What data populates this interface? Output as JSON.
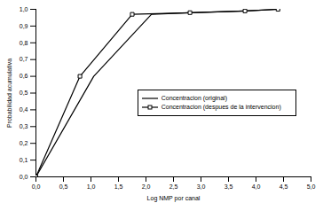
{
  "chart_data": {
    "type": "line",
    "x_label": "Log NMP por canal",
    "y_label": "Probabilidad acumulativa",
    "series": [
      {
        "name": "Concentracion (original)",
        "color": "#000000",
        "marker": "none",
        "line_style": "solid",
        "x": [
          0.0,
          1.05,
          2.1,
          2.8,
          3.8,
          4.4
        ],
        "values": [
          0.0,
          0.6,
          0.97,
          0.98,
          0.99,
          1.0
        ]
      },
      {
        "name": "Concentracion (despues de la intervencion)",
        "color": "#000000",
        "marker": "square",
        "line_style": "solid",
        "x": [
          0.0,
          0.8,
          1.75,
          2.8,
          3.8,
          4.4
        ],
        "values": [
          0.0,
          0.6,
          0.97,
          0.98,
          0.99,
          1.0
        ]
      }
    ],
    "xlim": [
      0.0,
      5.0
    ],
    "xticks": [
      {
        "value": 0.0,
        "label": "0,0"
      },
      {
        "value": 0.5,
        "label": "0,5"
      },
      {
        "value": 1.0,
        "label": "1,0"
      },
      {
        "value": 1.5,
        "label": "1,5"
      },
      {
        "value": 2.0,
        "label": "2,0"
      },
      {
        "value": 2.5,
        "label": "2,5"
      },
      {
        "value": 3.0,
        "label": "3,0"
      },
      {
        "value": 3.5,
        "label": "3,5"
      },
      {
        "value": 4.0,
        "label": "4,0"
      },
      {
        "value": 4.5,
        "label": "4,5"
      },
      {
        "value": 5.0,
        "label": "5,0"
      }
    ],
    "ylim": [
      0.0,
      1.0
    ],
    "yticks": [
      {
        "value": 0.0,
        "label": "0,0"
      },
      {
        "value": 0.1,
        "label": "0,1"
      },
      {
        "value": 0.2,
        "label": "0,2"
      },
      {
        "value": 0.3,
        "label": "0,3"
      },
      {
        "value": 0.4,
        "label": "0,4"
      },
      {
        "value": 0.5,
        "label": "0,5"
      },
      {
        "value": 0.6,
        "label": "0,6"
      },
      {
        "value": 0.7,
        "label": "0,7"
      },
      {
        "value": 0.8,
        "label": "0,8"
      },
      {
        "value": 0.9,
        "label": "0,9"
      },
      {
        "value": 1.0,
        "label": "1,0"
      }
    ],
    "grid": false,
    "legend": "right"
  }
}
